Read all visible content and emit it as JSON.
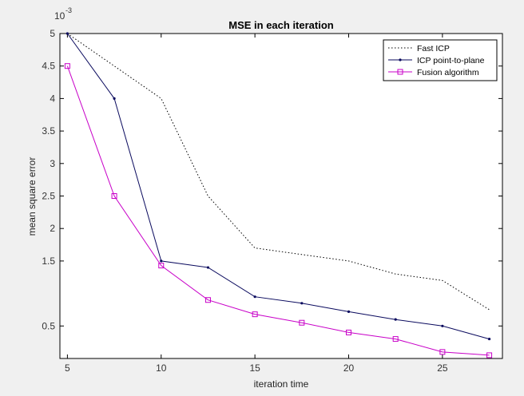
{
  "chart_data": {
    "type": "line",
    "title": "MSE in each iteration",
    "xlabel": "iteration time",
    "ylabel": "mean square error",
    "exponent_label": "10",
    "exponent_power": "-3",
    "xlim": [
      4.6,
      28.2
    ],
    "ylim": [
      0,
      5
    ],
    "xticks": [
      5,
      10,
      15,
      20,
      25
    ],
    "xtick_labels": [
      "5",
      "10",
      "15",
      "20",
      "25"
    ],
    "yticks": [
      0.5,
      1.5,
      2,
      2.5,
      3,
      3.5,
      4,
      4.5,
      5
    ],
    "ytick_labels": [
      "0.5",
      "1.5",
      "2",
      "2.5",
      "3",
      "3.5",
      "4",
      "4.5",
      "5"
    ],
    "legend_position": "top-right",
    "grid": false,
    "x": [
      5,
      7.5,
      10,
      12.5,
      15,
      17.5,
      20,
      22.5,
      25,
      27.5
    ],
    "series": [
      {
        "name": "Fast ICP",
        "color": "#000000",
        "style": "dotted",
        "marker": "none",
        "values": [
          5,
          4.5,
          4.0,
          2.5,
          1.7,
          1.6,
          1.5,
          1.3,
          1.2,
          0.75
        ]
      },
      {
        "name": "ICP point-to-plane",
        "color": "#0a0a5e",
        "style": "solid",
        "marker": "dot",
        "values": [
          5,
          4.0,
          1.5,
          1.4,
          0.95,
          0.85,
          0.72,
          0.6,
          0.5,
          0.3
        ]
      },
      {
        "name": "Fusion algorithm",
        "color": "#c800c8",
        "style": "solid",
        "marker": "square",
        "values": [
          4.5,
          2.5,
          1.43,
          0.9,
          0.68,
          0.55,
          0.4,
          0.3,
          0.1,
          0.05
        ]
      }
    ]
  }
}
